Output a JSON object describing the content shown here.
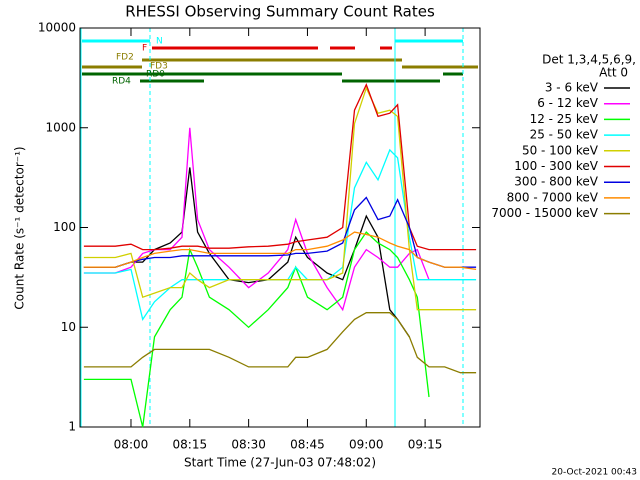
{
  "chart_data": {
    "type": "line",
    "title": "RHESSI Observing Summary Count Rates",
    "xlabel": "Start Time (27-Jun-03 07:48:02)",
    "ylabel": "Count Rate (s⁻¹ detector⁻¹)",
    "legend_title": [
      "Det 1,3,4,5,6,9,",
      "Att 0"
    ],
    "footer": "20-Oct-2021 00:43",
    "status_labels": [
      "N",
      "F",
      "FD2",
      "FD3",
      "RD0",
      "RD4"
    ],
    "log_y": true,
    "ylim": [
      1,
      10000
    ],
    "yticks": [
      1,
      10,
      100,
      1000,
      10000
    ],
    "xlim": [
      "07:47",
      "09:29"
    ],
    "xticks": [
      "08:00",
      "08:15",
      "08:30",
      "08:45",
      "09:00",
      "09:15"
    ],
    "x": [
      "07:48",
      "07:52",
      "07:56",
      "08:00",
      "08:03",
      "08:06",
      "08:10",
      "08:13",
      "08:15",
      "08:17",
      "08:20",
      "08:25",
      "08:30",
      "08:35",
      "08:40",
      "08:42",
      "08:45",
      "08:50",
      "08:54",
      "08:57",
      "09:00",
      "09:03",
      "09:06",
      "09:08",
      "09:11",
      "09:13",
      "09:16",
      "09:20",
      "09:24",
      "09:28"
    ],
    "series": [
      {
        "name": "3 - 6 keV",
        "color": "#000000",
        "values": [
          40,
          40,
          40,
          45,
          45,
          60,
          70,
          90,
          400,
          90,
          55,
          30,
          28,
          30,
          45,
          80,
          50,
          35,
          30,
          60,
          130,
          80,
          15,
          12,
          8,
          null,
          null,
          null,
          null,
          null
        ]
      },
      {
        "name": "6 - 12 keV",
        "color": "#ff00ff",
        "values": [
          35,
          35,
          35,
          40,
          55,
          60,
          60,
          80,
          1000,
          120,
          60,
          40,
          25,
          35,
          60,
          120,
          55,
          25,
          15,
          40,
          60,
          50,
          40,
          40,
          55,
          60,
          30,
          null,
          null,
          null
        ]
      },
      {
        "name": "12 - 25 keV",
        "color": "#00ff00",
        "values": [
          3,
          3,
          3,
          3,
          1,
          8,
          15,
          20,
          60,
          40,
          20,
          15,
          10,
          15,
          25,
          40,
          20,
          15,
          20,
          60,
          90,
          70,
          60,
          50,
          30,
          20,
          2,
          null,
          null,
          null
        ]
      },
      {
        "name": "25 - 50 keV",
        "color": "#00ffff",
        "values": [
          35,
          35,
          35,
          38,
          12,
          18,
          25,
          30,
          30,
          30,
          30,
          30,
          30,
          30,
          30,
          40,
          30,
          30,
          40,
          250,
          450,
          300,
          600,
          500,
          80,
          30,
          30,
          30,
          30,
          30
        ]
      },
      {
        "name": "50 - 100 keV",
        "color": "#d0d000",
        "values": [
          50,
          50,
          50,
          55,
          20,
          22,
          25,
          25,
          35,
          30,
          25,
          30,
          30,
          30,
          30,
          30,
          30,
          30,
          35,
          1100,
          2500,
          1400,
          1500,
          1300,
          60,
          15,
          15,
          15,
          15,
          15
        ]
      },
      {
        "name": "100 - 300 keV",
        "color": "#e00000",
        "values": [
          65,
          65,
          65,
          68,
          60,
          60,
          62,
          65,
          65,
          65,
          62,
          62,
          64,
          65,
          68,
          72,
          75,
          80,
          100,
          1500,
          2700,
          1300,
          1400,
          1700,
          100,
          65,
          60,
          60,
          60,
          60
        ]
      },
      {
        "name": "300 - 800 keV",
        "color": "#0000e0",
        "values": [
          40,
          40,
          40,
          45,
          48,
          50,
          50,
          52,
          52,
          52,
          52,
          52,
          52,
          52,
          53,
          55,
          55,
          58,
          70,
          150,
          200,
          120,
          130,
          190,
          100,
          50,
          45,
          40,
          40,
          40
        ]
      },
      {
        "name": "800 - 7000 keV",
        "color": "#ff8c00",
        "values": [
          40,
          40,
          40,
          45,
          50,
          55,
          58,
          60,
          60,
          58,
          55,
          55,
          55,
          55,
          55,
          60,
          60,
          65,
          75,
          90,
          85,
          80,
          70,
          65,
          60,
          50,
          45,
          40,
          40,
          38
        ]
      },
      {
        "name": "7000 - 15000 keV",
        "color": "#8b7d00",
        "values": [
          4,
          4,
          4,
          4,
          5,
          6,
          6,
          6,
          6,
          6,
          6,
          5,
          4,
          4,
          4,
          5,
          5,
          6,
          9,
          12,
          14,
          14,
          14,
          12,
          8,
          5,
          4,
          4,
          3.5,
          3.5
        ]
      }
    ]
  }
}
